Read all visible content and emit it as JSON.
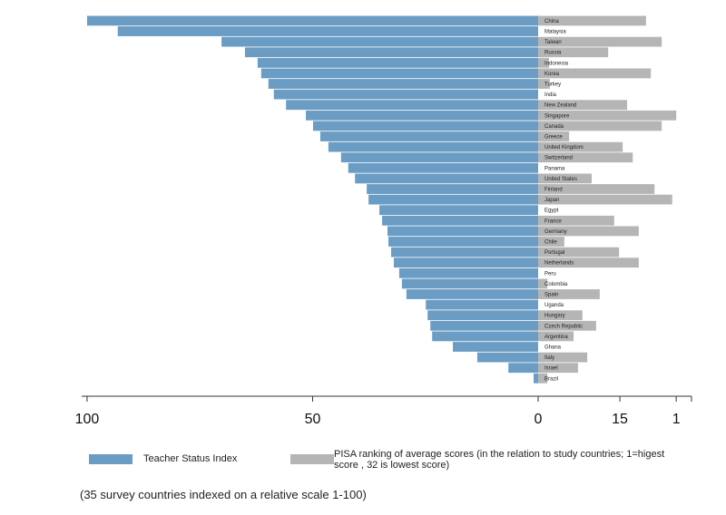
{
  "chart_data": {
    "type": "butterfly-bar",
    "note": "(35 survey countries indexed on a relative scale 1-100)",
    "categories": [
      "China",
      "Malaysia",
      "Taiwan",
      "Russia",
      "Indonesia",
      "Korea",
      "Turkey",
      "India",
      "New Zealand",
      "Singapore",
      "Canada",
      "Greece",
      "United Kingdom",
      "Switzerland",
      "Panama",
      "United States",
      "Finland",
      "Japan",
      "Egypt",
      "France",
      "Germany",
      "Chile",
      "Portugal",
      "Netherlands",
      "Peru",
      "Colombia",
      "Spain",
      "Uganda",
      "Hungary",
      "Czech Republic",
      "Argentina",
      "Ghana",
      "Italy",
      "Israel",
      "Brazil"
    ],
    "series": [
      {
        "name": "Teacher Status Index",
        "color": "#6a9cc4",
        "values": [
          100,
          93.2,
          70.2,
          65,
          62.2,
          61.4,
          59.8,
          58.6,
          55.9,
          51.5,
          49.9,
          48.3,
          46.5,
          43.7,
          42.1,
          40.6,
          38,
          37.6,
          35.2,
          34.6,
          33.4,
          33.2,
          32.6,
          32,
          30.8,
          30.2,
          29.2,
          24.9,
          24.5,
          23.9,
          23.5,
          18.9,
          13.5,
          6.6,
          1
        ]
      },
      {
        "name": "PISA ranking of average scores (in the relation to study countries; 1=higest score , 32 is lowest score)",
        "color": "#b5b5b5",
        "axis": "x2",
        "values": [
          8.5,
          null,
          4.6,
          17.9,
          32.6,
          7.3,
          32.4,
          null,
          13.2,
          1,
          4.6,
          27.6,
          14.3,
          11.8,
          null,
          22,
          6.4,
          2,
          null,
          16.4,
          10.3,
          28.8,
          15.2,
          10.3,
          null,
          33,
          20,
          null,
          24.3,
          20.9,
          26.5,
          null,
          23.1,
          25.4,
          33
        ]
      }
    ],
    "xlim": [
      101.2,
      0
    ],
    "xticks": [
      100,
      50,
      0
    ],
    "x2lim": [
      35.3,
      -2.8
    ],
    "x2ticks": [
      15,
      1
    ]
  }
}
